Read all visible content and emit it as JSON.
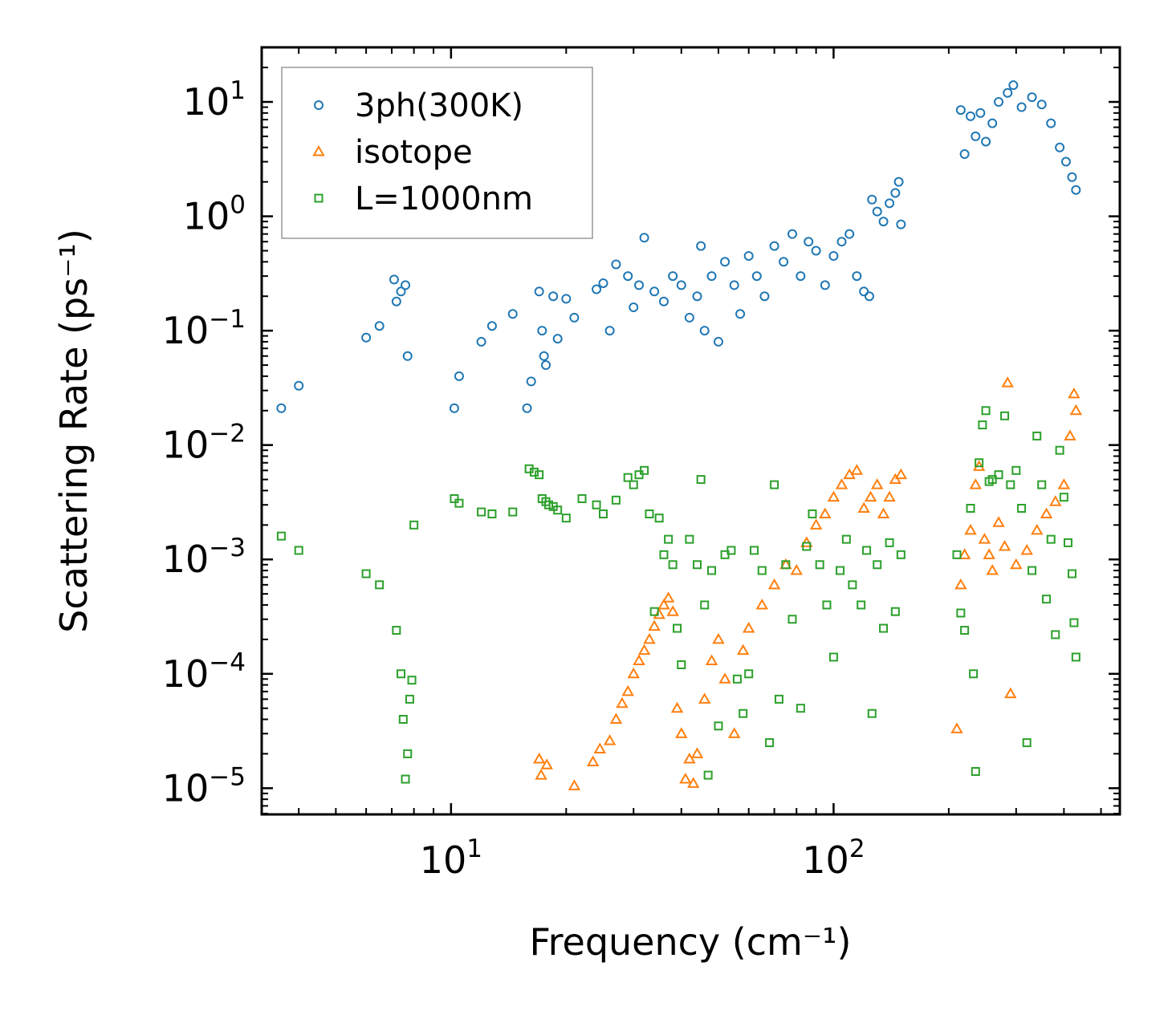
{
  "chart_data": {
    "type": "scatter",
    "title": "",
    "xlabel": "Frequency (cm⁻¹)",
    "ylabel": "Scattering Rate (ps⁻¹)",
    "xscale": "log",
    "yscale": "log",
    "xlim": [
      3.2,
      560
    ],
    "ylim": [
      5.9e-06,
      30
    ],
    "x_tick_labels": [
      {
        "value": 10,
        "base": "10",
        "exp": "1"
      },
      {
        "value": 100,
        "base": "10",
        "exp": "2"
      }
    ],
    "y_tick_labels": [
      {
        "value": 10,
        "base": "10",
        "exp": "1"
      },
      {
        "value": 1,
        "base": "10",
        "exp": "0"
      },
      {
        "value": 0.1,
        "base": "10",
        "exp": "−1"
      },
      {
        "value": 0.01,
        "base": "10",
        "exp": "−2"
      },
      {
        "value": 0.001,
        "base": "10",
        "exp": "−3"
      },
      {
        "value": 0.0001,
        "base": "10",
        "exp": "−4"
      },
      {
        "value": 1e-05,
        "base": "10",
        "exp": "−5"
      }
    ],
    "legend_position": "top-left",
    "series": [
      {
        "name": "3ph(300K)",
        "marker": "circle",
        "color": "#1f77b4",
        "points": [
          [
            3.6,
            0.021
          ],
          [
            4.0,
            0.033
          ],
          [
            6.0,
            0.087
          ],
          [
            6.5,
            0.11
          ],
          [
            7.1,
            0.28
          ],
          [
            7.2,
            0.18
          ],
          [
            7.4,
            0.22
          ],
          [
            7.6,
            0.25
          ],
          [
            7.7,
            0.06
          ],
          [
            10.2,
            0.021
          ],
          [
            10.5,
            0.04
          ],
          [
            12.0,
            0.08
          ],
          [
            12.8,
            0.11
          ],
          [
            14.5,
            0.14
          ],
          [
            15.8,
            0.021
          ],
          [
            16.2,
            0.036
          ],
          [
            17.0,
            0.22
          ],
          [
            17.3,
            0.1
          ],
          [
            17.5,
            0.06
          ],
          [
            17.7,
            0.05
          ],
          [
            18.5,
            0.2
          ],
          [
            19.0,
            0.085
          ],
          [
            20.0,
            0.19
          ],
          [
            21.0,
            0.13
          ],
          [
            24.0,
            0.23
          ],
          [
            25.0,
            0.26
          ],
          [
            26.0,
            0.1
          ],
          [
            27.0,
            0.38
          ],
          [
            29.0,
            0.3
          ],
          [
            30.0,
            0.16
          ],
          [
            31.0,
            0.25
          ],
          [
            32.0,
            0.65
          ],
          [
            34.0,
            0.22
          ],
          [
            36.0,
            0.18
          ],
          [
            38.0,
            0.3
          ],
          [
            40.0,
            0.25
          ],
          [
            42.0,
            0.13
          ],
          [
            44.0,
            0.2
          ],
          [
            45.0,
            0.55
          ],
          [
            46.0,
            0.1
          ],
          [
            48.0,
            0.3
          ],
          [
            50.0,
            0.08
          ],
          [
            52.0,
            0.4
          ],
          [
            55.0,
            0.25
          ],
          [
            57.0,
            0.14
          ],
          [
            60.0,
            0.45
          ],
          [
            63.0,
            0.3
          ],
          [
            66.0,
            0.2
          ],
          [
            70.0,
            0.55
          ],
          [
            74.0,
            0.4
          ],
          [
            78.0,
            0.7
          ],
          [
            82.0,
            0.3
          ],
          [
            86.0,
            0.6
          ],
          [
            90.0,
            0.5
          ],
          [
            95.0,
            0.25
          ],
          [
            100.0,
            0.45
          ],
          [
            105.0,
            0.6
          ],
          [
            110.0,
            0.7
          ],
          [
            115.0,
            0.3
          ],
          [
            120.0,
            0.22
          ],
          [
            124.0,
            0.2
          ],
          [
            126.0,
            1.4
          ],
          [
            130.0,
            1.1
          ],
          [
            135.0,
            0.9
          ],
          [
            140.0,
            1.3
          ],
          [
            145.0,
            1.6
          ],
          [
            148.0,
            2.0
          ],
          [
            150.0,
            0.85
          ],
          [
            215.0,
            8.5
          ],
          [
            220.0,
            3.5
          ],
          [
            228.0,
            7.5
          ],
          [
            235.0,
            5.0
          ],
          [
            242.0,
            8.0
          ],
          [
            250.0,
            4.5
          ],
          [
            260.0,
            6.5
          ],
          [
            270.0,
            10.0
          ],
          [
            285.0,
            12.0
          ],
          [
            295.0,
            14.0
          ],
          [
            310.0,
            9.0
          ],
          [
            330.0,
            11.0
          ],
          [
            350.0,
            9.5
          ],
          [
            370.0,
            6.5
          ],
          [
            390.0,
            4.0
          ],
          [
            405.0,
            3.0
          ],
          [
            420.0,
            2.2
          ],
          [
            430.0,
            1.7
          ]
        ]
      },
      {
        "name": "isotope",
        "marker": "triangle",
        "color": "#ff7f0e",
        "points": [
          [
            17.0,
            1.8e-05
          ],
          [
            17.2,
            1.3e-05
          ],
          [
            17.8,
            1.6e-05
          ],
          [
            21.0,
            1.05e-05
          ],
          [
            23.5,
            1.7e-05
          ],
          [
            24.5,
            2.2e-05
          ],
          [
            26.0,
            2.6e-05
          ],
          [
            27.0,
            4e-05
          ],
          [
            28.0,
            5.5e-05
          ],
          [
            29.0,
            7e-05
          ],
          [
            30.0,
            0.0001
          ],
          [
            31.0,
            0.00013
          ],
          [
            32.0,
            0.00016
          ],
          [
            33.0,
            0.0002
          ],
          [
            34.0,
            0.00026
          ],
          [
            35.0,
            0.00033
          ],
          [
            36.0,
            0.0004
          ],
          [
            37.0,
            0.00046
          ],
          [
            38.0,
            0.00035
          ],
          [
            39.0,
            5e-05
          ],
          [
            40.0,
            3e-05
          ],
          [
            41.0,
            1.2e-05
          ],
          [
            42.0,
            1.8e-05
          ],
          [
            43.0,
            1.1e-05
          ],
          [
            44.0,
            2e-05
          ],
          [
            46.0,
            6e-05
          ],
          [
            48.0,
            0.00013
          ],
          [
            50.0,
            0.0002
          ],
          [
            52.0,
            9e-05
          ],
          [
            55.0,
            3e-05
          ],
          [
            58.0,
            0.00016
          ],
          [
            60.0,
            0.00025
          ],
          [
            65.0,
            0.0004
          ],
          [
            70.0,
            0.0006
          ],
          [
            75.0,
            0.0009
          ],
          [
            80.0,
            0.0008
          ],
          [
            85.0,
            0.0014
          ],
          [
            90.0,
            0.002
          ],
          [
            95.0,
            0.0025
          ],
          [
            100.0,
            0.0035
          ],
          [
            105.0,
            0.0045
          ],
          [
            110.0,
            0.0055
          ],
          [
            115.0,
            0.006
          ],
          [
            120.0,
            0.0028
          ],
          [
            125.0,
            0.0035
          ],
          [
            130.0,
            0.0045
          ],
          [
            135.0,
            0.0025
          ],
          [
            140.0,
            0.0035
          ],
          [
            145.0,
            0.005
          ],
          [
            150.0,
            0.0055
          ],
          [
            210.0,
            3.3e-05
          ],
          [
            215.0,
            0.0006
          ],
          [
            220.0,
            0.0011
          ],
          [
            228.0,
            0.0018
          ],
          [
            235.0,
            0.0045
          ],
          [
            240.0,
            0.0065
          ],
          [
            248.0,
            0.0015
          ],
          [
            255.0,
            0.0011
          ],
          [
            260.0,
            0.0008
          ],
          [
            270.0,
            0.0021
          ],
          [
            280.0,
            0.0013
          ],
          [
            285.0,
            0.035
          ],
          [
            290.0,
            6.7e-05
          ],
          [
            300.0,
            0.0009
          ],
          [
            320.0,
            0.0012
          ],
          [
            340.0,
            0.0018
          ],
          [
            360.0,
            0.0025
          ],
          [
            380.0,
            0.0032
          ],
          [
            400.0,
            0.0045
          ],
          [
            415.0,
            0.012
          ],
          [
            425.0,
            0.028
          ],
          [
            430.0,
            0.02
          ]
        ]
      },
      {
        "name": "L=1000nm",
        "marker": "square",
        "color": "#2ca02c",
        "points": [
          [
            3.6,
            0.0016
          ],
          [
            4.0,
            0.0012
          ],
          [
            6.0,
            0.00075
          ],
          [
            6.5,
            0.0006
          ],
          [
            7.2,
            0.00024
          ],
          [
            7.4,
            0.0001
          ],
          [
            7.5,
            4e-05
          ],
          [
            7.6,
            1.2e-05
          ],
          [
            7.7,
            2e-05
          ],
          [
            7.8,
            6e-05
          ],
          [
            7.9,
            8.8e-05
          ],
          [
            8.0,
            0.002
          ],
          [
            10.2,
            0.0034
          ],
          [
            10.5,
            0.0031
          ],
          [
            12.0,
            0.0026
          ],
          [
            12.8,
            0.0025
          ],
          [
            14.5,
            0.0026
          ],
          [
            16.0,
            0.0062
          ],
          [
            16.5,
            0.0058
          ],
          [
            17.0,
            0.0055
          ],
          [
            17.3,
            0.0034
          ],
          [
            17.7,
            0.0032
          ],
          [
            18.0,
            0.003
          ],
          [
            18.5,
            0.0029
          ],
          [
            19.0,
            0.0027
          ],
          [
            20.0,
            0.0023
          ],
          [
            22.0,
            0.0034
          ],
          [
            24.0,
            0.003
          ],
          [
            25.0,
            0.0025
          ],
          [
            27.0,
            0.0033
          ],
          [
            29.0,
            0.0052
          ],
          [
            30.0,
            0.0045
          ],
          [
            31.0,
            0.0055
          ],
          [
            32.0,
            0.006
          ],
          [
            33.0,
            0.0025
          ],
          [
            34.0,
            0.00035
          ],
          [
            35.0,
            0.0023
          ],
          [
            36.0,
            0.0011
          ],
          [
            37.0,
            0.0015
          ],
          [
            38.0,
            0.0009
          ],
          [
            39.0,
            0.00025
          ],
          [
            40.0,
            0.00012
          ],
          [
            42.0,
            0.0015
          ],
          [
            44.0,
            0.0009
          ],
          [
            45.0,
            0.005
          ],
          [
            46.0,
            0.0004
          ],
          [
            47.0,
            1.3e-05
          ],
          [
            48.0,
            0.0008
          ],
          [
            50.0,
            3.5e-05
          ],
          [
            52.0,
            0.0011
          ],
          [
            54.0,
            0.0012
          ],
          [
            56.0,
            9e-05
          ],
          [
            58.0,
            4.5e-05
          ],
          [
            60.0,
            0.0001
          ],
          [
            62.0,
            0.0012
          ],
          [
            65.0,
            0.0008
          ],
          [
            68.0,
            2.5e-05
          ],
          [
            70.0,
            0.0045
          ],
          [
            72.0,
            6e-05
          ],
          [
            75.0,
            0.0009
          ],
          [
            78.0,
            0.0003
          ],
          [
            82.0,
            5e-05
          ],
          [
            85.0,
            0.0013
          ],
          [
            88.0,
            0.0025
          ],
          [
            92.0,
            0.0009
          ],
          [
            96.0,
            0.0004
          ],
          [
            100.0,
            0.00014
          ],
          [
            104.0,
            0.0008
          ],
          [
            108.0,
            0.0015
          ],
          [
            112.0,
            0.0006
          ],
          [
            118.0,
            0.0004
          ],
          [
            122.0,
            0.0012
          ],
          [
            126.0,
            4.5e-05
          ],
          [
            130.0,
            0.0009
          ],
          [
            135.0,
            0.00025
          ],
          [
            140.0,
            0.0014
          ],
          [
            145.0,
            0.00035
          ],
          [
            150.0,
            0.0011
          ],
          [
            210.0,
            0.0011
          ],
          [
            215.0,
            0.00034
          ],
          [
            220.0,
            0.00024
          ],
          [
            228.0,
            0.0028
          ],
          [
            232.0,
            0.0001
          ],
          [
            235.0,
            1.4e-05
          ],
          [
            240.0,
            0.007
          ],
          [
            245.0,
            0.015
          ],
          [
            250.0,
            0.02
          ],
          [
            255.0,
            0.0048
          ],
          [
            260.0,
            0.005
          ],
          [
            270.0,
            0.0055
          ],
          [
            280.0,
            0.018
          ],
          [
            290.0,
            0.0045
          ],
          [
            300.0,
            0.006
          ],
          [
            310.0,
            0.0028
          ],
          [
            320.0,
            2.5e-05
          ],
          [
            330.0,
            0.0008
          ],
          [
            340.0,
            0.012
          ],
          [
            350.0,
            0.0045
          ],
          [
            360.0,
            0.00045
          ],
          [
            370.0,
            0.0015
          ],
          [
            380.0,
            0.00022
          ],
          [
            390.0,
            0.009
          ],
          [
            400.0,
            0.0035
          ],
          [
            410.0,
            0.0014
          ],
          [
            420.0,
            0.00075
          ],
          [
            425.0,
            0.00028
          ],
          [
            430.0,
            0.00014
          ]
        ]
      }
    ]
  }
}
